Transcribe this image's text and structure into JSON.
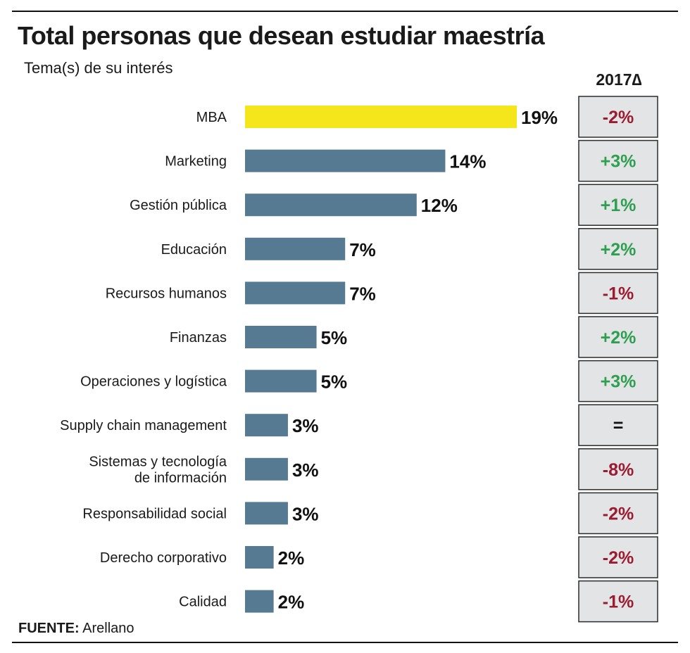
{
  "colors": {
    "highlight": "#F5E51B",
    "bar": "#557A92",
    "cell_bg": "#E3E4E6",
    "cell_border": "#2b2b2b",
    "negative": "#9B1B30",
    "positive": "#2E9E4F",
    "neutral": "#111111"
  },
  "source": {
    "label": "FUENTE:",
    "text": "Arellano"
  },
  "chart_data": {
    "type": "bar",
    "orientation": "horizontal",
    "title": "Total personas que desean estudiar maestría",
    "subtitle": "Tema(s) de su interés",
    "delta_header": "2017∆",
    "categories": [
      [
        "MBA"
      ],
      [
        "Marketing"
      ],
      [
        "Gestión pública"
      ],
      [
        "Educación"
      ],
      [
        "Recursos humanos"
      ],
      [
        "Finanzas"
      ],
      [
        "Operaciones y logística"
      ],
      [
        "Supply chain management"
      ],
      [
        "Sistemas y tecnología",
        "de información"
      ],
      [
        "Responsabilidad social"
      ],
      [
        "Derecho corporativo"
      ],
      [
        "Calidad"
      ]
    ],
    "values": [
      19,
      14,
      12,
      7,
      7,
      5,
      5,
      3,
      3,
      3,
      2,
      2
    ],
    "value_labels": [
      "19%",
      "14%",
      "12%",
      "7%",
      "7%",
      "5%",
      "5%",
      "3%",
      "3%",
      "3%",
      "2%",
      "2%"
    ],
    "deltas": [
      "-2%",
      "+3%",
      "+1%",
      "+2%",
      "-1%",
      "+2%",
      "+3%",
      "=",
      "-8%",
      "-2%",
      "-2%",
      "-1%"
    ],
    "highlight_index": 0,
    "xlim": [
      0,
      19
    ]
  }
}
